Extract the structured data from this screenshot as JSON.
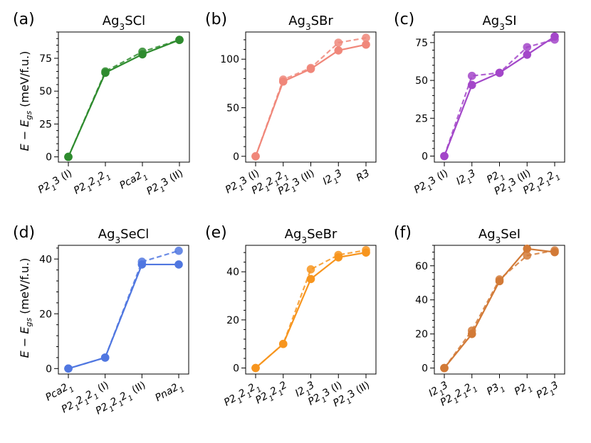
{
  "figure": {
    "ylabel": "E − E",
    "ylabel_sub": "gs",
    "ylabel_unit": " (meV/f.u.)"
  },
  "chart_data": [
    {
      "type": "line",
      "panel": "(a)",
      "title": "Ag₃SCl",
      "color": "#2e8b2e",
      "categories": [
        "P2₁3 (I)",
        "P2₁2₁2₁",
        "Pca2₁",
        "P2₁3 (II)"
      ],
      "series": [
        {
          "name": "solid",
          "values": [
            0,
            64,
            78,
            89
          ]
        },
        {
          "name": "dashed",
          "values": [
            0,
            65,
            80,
            89
          ]
        }
      ],
      "ylim": [
        -4,
        95
      ],
      "yticks": [
        0,
        25,
        50,
        75
      ]
    },
    {
      "type": "line",
      "panel": "(b)",
      "title": "Ag₃SBr",
      "color": "#f0877a",
      "categories": [
        "P2₁3 (I)",
        "P2₁2₁2₁",
        "P2₁3 (II)",
        "I2₁3",
        "R3"
      ],
      "series": [
        {
          "name": "solid",
          "values": [
            0,
            77,
            90,
            109,
            115
          ]
        },
        {
          "name": "dashed",
          "values": [
            0,
            79,
            91,
            117,
            122
          ]
        }
      ],
      "ylim": [
        -6,
        128
      ],
      "yticks": [
        0,
        50,
        100
      ]
    },
    {
      "type": "line",
      "panel": "(c)",
      "title": "Ag₃SI",
      "color": "#a347c9",
      "categories": [
        "P2₁3 (I)",
        "I2₁3",
        "P2₁",
        "P2₁3 (II)",
        "P2₁2₁2₁"
      ],
      "series": [
        {
          "name": "solid",
          "values": [
            0,
            47,
            55,
            67,
            79
          ]
        },
        {
          "name": "dashed",
          "values": [
            0,
            53,
            55,
            72,
            77
          ]
        }
      ],
      "ylim": [
        -4,
        82
      ],
      "yticks": [
        0,
        25,
        50,
        75
      ]
    },
    {
      "type": "line",
      "panel": "(d)",
      "title": "Ag₃SeCl",
      "color": "#5077e0",
      "categories": [
        "Pca2₁",
        "P2₁2₁2₁ (I)",
        "P2₁2₁2₁ (II)",
        "Pna2₁"
      ],
      "series": [
        {
          "name": "solid",
          "values": [
            0,
            4,
            38,
            38
          ]
        },
        {
          "name": "dashed",
          "values": [
            0,
            4,
            39,
            43
          ]
        }
      ],
      "ylim": [
        -2,
        45
      ],
      "yticks": [
        0,
        20,
        40
      ]
    },
    {
      "type": "line",
      "panel": "(e)",
      "title": "Ag₃SeBr",
      "color": "#f7951e",
      "categories": [
        "P2₁2₁2₁",
        "P2₁2₁2",
        "I2₁3",
        "P2₁3 (I)",
        "P2₁3 (II)"
      ],
      "series": [
        {
          "name": "solid",
          "values": [
            0,
            10,
            37,
            46,
            48
          ]
        },
        {
          "name": "dashed",
          "values": [
            0,
            10,
            41,
            47,
            49
          ]
        }
      ],
      "ylim": [
        -2.5,
        51
      ],
      "yticks": [
        0,
        20,
        40
      ]
    },
    {
      "type": "line",
      "panel": "(f)",
      "title": "Ag₃SeI",
      "color": "#d27a37",
      "categories": [
        "I2₁3",
        "P2₁2₁2₁",
        "P3₁",
        "P2₁",
        "P2₁3"
      ],
      "series": [
        {
          "name": "solid",
          "values": [
            0,
            20,
            51,
            70,
            68
          ]
        },
        {
          "name": "dashed",
          "values": [
            0,
            22,
            52,
            66,
            69
          ]
        }
      ],
      "ylim": [
        -3.5,
        72
      ],
      "yticks": [
        0,
        20,
        40,
        60
      ]
    }
  ]
}
